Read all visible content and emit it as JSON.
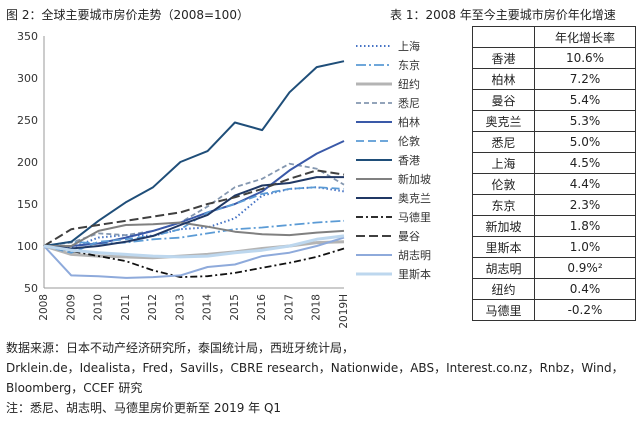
{
  "figure_title": "图 2：全球主要城市房价走势（2008=100）",
  "table_title": "表 1：2008 年至今主要城市房价年化增速",
  "table": {
    "header": "年化增长率",
    "rows": [
      {
        "city": "香港",
        "rate": "10.6%"
      },
      {
        "city": "柏林",
        "rate": "7.2%"
      },
      {
        "city": "曼谷",
        "rate": "5.4%"
      },
      {
        "city": "奥克兰",
        "rate": "5.3%"
      },
      {
        "city": "悉尼",
        "rate": "5.0%"
      },
      {
        "city": "上海",
        "rate": "4.5%"
      },
      {
        "city": "伦敦",
        "rate": "4.4%"
      },
      {
        "city": "东京",
        "rate": "2.3%"
      },
      {
        "city": "新加坡",
        "rate": "1.8%"
      },
      {
        "city": "里斯本",
        "rate": "1.0%"
      },
      {
        "city": "胡志明",
        "rate": "0.9%²"
      },
      {
        "city": "纽约",
        "rate": "0.4%"
      },
      {
        "city": "马德里",
        "rate": "-0.2%"
      }
    ]
  },
  "notes": {
    "line1": "数据来源：日本不动产经济研究所，泰国统计局，西班牙统计局，",
    "line2": "Drklein.de，Idealista，Fred，Savills，CBRE research，Nationwide，ABS，Interest.co.nz，Rnbz，Wind，",
    "line3": "Bloomberg，CCEF 研究",
    "line4": "注：悉尼、胡志明、马德里房价更新至 2019 年 Q1"
  },
  "chart_data": {
    "type": "line",
    "x": [
      "2008",
      "2009",
      "2010",
      "2011",
      "2012",
      "2013",
      "2014",
      "2015",
      "2016",
      "2017",
      "2018",
      "2019H"
    ],
    "ylim": [
      50,
      350
    ],
    "yticks": [
      50,
      100,
      150,
      200,
      250,
      300,
      350
    ],
    "grid": false,
    "legend_position": "right",
    "series": [
      {
        "name": "上海",
        "color": "#4472c4",
        "dash": "1.5,2.5",
        "width": 2,
        "values": [
          100,
          98,
          110,
          113,
          112,
          120,
          122,
          133,
          160,
          168,
          170,
          165
        ]
      },
      {
        "name": "东京",
        "color": "#5b9bd5",
        "dash": "10,3,2,3",
        "width": 1.8,
        "values": [
          100,
          105,
          103,
          104,
          108,
          110,
          115,
          120,
          122,
          125,
          128,
          130
        ]
      },
      {
        "name": "纽约",
        "color": "#b4b4b4",
        "dash": "",
        "width": 3,
        "values": [
          100,
          90,
          88,
          87,
          86,
          88,
          90,
          93,
          97,
          100,
          104,
          105
        ]
      },
      {
        "name": "悉尼",
        "color": "#8497b0",
        "dash": "5,3",
        "width": 1.8,
        "values": [
          100,
          104,
          115,
          113,
          118,
          128,
          147,
          170,
          180,
          198,
          192,
          173
        ]
      },
      {
        "name": "柏林",
        "color": "#3a59a8",
        "dash": "",
        "width": 2,
        "values": [
          100,
          100,
          103,
          110,
          118,
          128,
          140,
          150,
          165,
          190,
          210,
          225
        ]
      },
      {
        "name": "伦敦",
        "color": "#5b9bd5",
        "dash": "8,4",
        "width": 1.8,
        "values": [
          100,
          92,
          105,
          108,
          112,
          120,
          140,
          150,
          162,
          168,
          170,
          168
        ]
      },
      {
        "name": "香港",
        "color": "#1f4e79",
        "dash": "",
        "width": 2,
        "values": [
          100,
          105,
          130,
          152,
          170,
          200,
          213,
          247,
          238,
          283,
          313,
          320
        ]
      },
      {
        "name": "新加坡",
        "color": "#808080",
        "dash": "",
        "width": 2,
        "values": [
          100,
          100,
          118,
          125,
          126,
          128,
          123,
          117,
          114,
          113,
          116,
          118
        ]
      },
      {
        "name": "奥克兰",
        "color": "#203864",
        "dash": "",
        "width": 2,
        "values": [
          100,
          97,
          100,
          105,
          112,
          125,
          137,
          160,
          172,
          175,
          182,
          182
        ]
      },
      {
        "name": "马德里",
        "color": "#111111",
        "dash": "7,3,2,3",
        "width": 1.8,
        "values": [
          100,
          94,
          88,
          82,
          71,
          63,
          64,
          68,
          74,
          80,
          87,
          97
        ]
      },
      {
        "name": "曼谷",
        "color": "#404040",
        "dash": "9,4",
        "width": 2,
        "values": [
          100,
          120,
          125,
          130,
          135,
          140,
          150,
          158,
          168,
          180,
          190,
          185
        ]
      },
      {
        "name": "胡志明",
        "color": "#8eaadb",
        "dash": "",
        "width": 2,
        "values": [
          100,
          65,
          64,
          62,
          63,
          65,
          75,
          78,
          88,
          92,
          100,
          110
        ]
      },
      {
        "name": "里斯本",
        "color": "#bdd7ee",
        "dash": "",
        "width": 3,
        "values": [
          100,
          95,
          92,
          90,
          88,
          87,
          88,
          92,
          95,
          100,
          108,
          112
        ]
      }
    ]
  }
}
